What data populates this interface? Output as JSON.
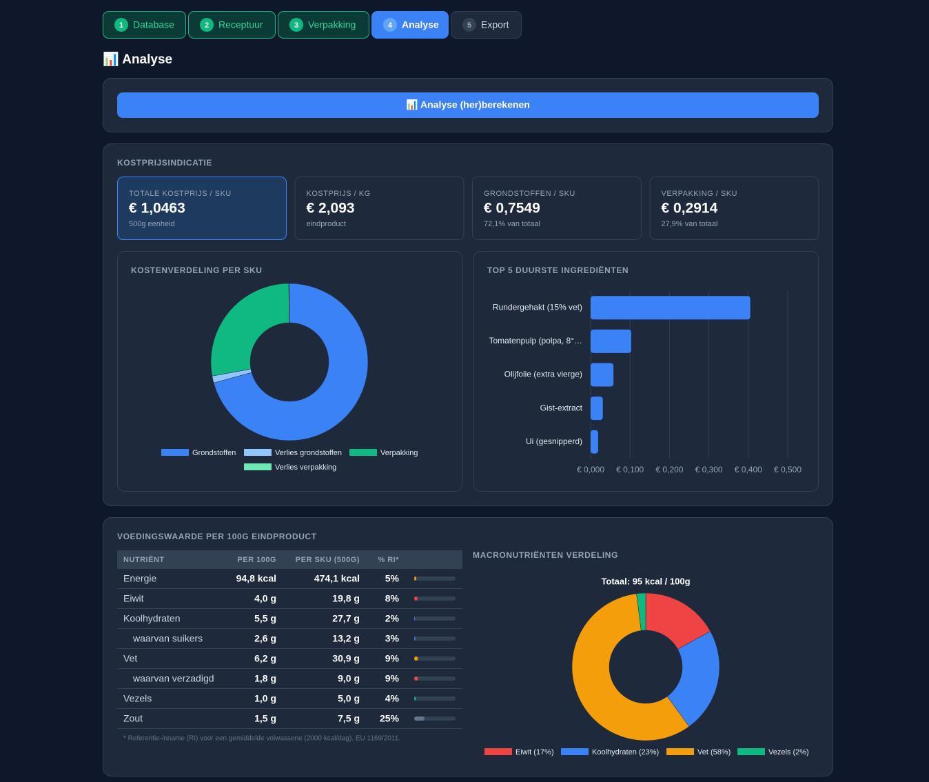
{
  "steps": [
    {
      "number": 1,
      "label": "Database",
      "status": "done"
    },
    {
      "number": 2,
      "label": "Receptuur",
      "status": "done"
    },
    {
      "number": 3,
      "label": "Verpakking",
      "status": "done"
    },
    {
      "number": 4,
      "label": "Analyse",
      "status": "active"
    },
    {
      "number": 5,
      "label": "Export",
      "status": "todo"
    }
  ],
  "title": "📊 Analyse",
  "button": "📊 Analyse (her)berekenen",
  "cost": {
    "heading": "KOSTPRIJSINDICATIE",
    "cards": [
      {
        "label": "TOTALE KOSTPRIJS / SKU",
        "value": "€ 1,0463",
        "sub": "500g eenheid",
        "highlight": true
      },
      {
        "label": "KOSTPRIJS / KG",
        "value": "€ 2,093",
        "sub": "eindproduct"
      },
      {
        "label": "GRONDSTOFFEN / SKU",
        "value": "€ 0,7549",
        "sub": "72,1% van totaal"
      },
      {
        "label": "VERPAKKING / SKU",
        "value": "€ 0,2914",
        "sub": "27,9% van totaal"
      }
    ]
  },
  "chart_data": [
    {
      "type": "donut",
      "title": "KOSTENVERDELING PER SKU",
      "categories": [
        "Grondstoffen",
        "Verlies grondstoffen",
        "Verpakking",
        "Verlies verpakking"
      ],
      "values": [
        0.74,
        0.015,
        0.29,
        0.0014
      ],
      "colors": [
        "#3b82f6",
        "#93c5fd",
        "#10b981",
        "#6ee7b7"
      ]
    },
    {
      "type": "bar",
      "orientation": "horizontal",
      "title": "TOP 5 DUURSTE INGREDIËNTEN",
      "categories": [
        "Rundergehakt (15% vet)",
        "Tomatenpulp (polpa, 8°…",
        "Olijfolie (extra vierge)",
        "Gist-extract",
        "Ui (gesnipperd)"
      ],
      "values": [
        0.405,
        0.103,
        0.058,
        0.031,
        0.019
      ],
      "color": "#3b82f6",
      "xlim": [
        0,
        0.5
      ],
      "xticks": [
        {
          "value": 0,
          "label": "€ 0,000"
        },
        {
          "value": 0.1,
          "label": "€ 0,100"
        },
        {
          "value": 0.2,
          "label": "€ 0,200"
        },
        {
          "value": 0.3,
          "label": "€ 0,300"
        },
        {
          "value": 0.4,
          "label": "€ 0,400"
        },
        {
          "value": 0.5,
          "label": "€ 0,500"
        }
      ],
      "grid": true
    },
    {
      "type": "donut",
      "title": "MACRONUTRIËNTEN VERDELING",
      "subtitle": "Totaal: 95 kcal / 100g",
      "categories": [
        "Eiwit (17%)",
        "Koolhydraten (23%)",
        "Vet (58%)",
        "Vezels (2%)"
      ],
      "values": [
        17,
        23,
        58,
        2
      ],
      "colors": [
        "#ef4444",
        "#3b82f6",
        "#f59e0b",
        "#10b981"
      ]
    }
  ],
  "nutrition": {
    "heading": "VOEDINGSWAARDE PER 100G EINDPRODUCT",
    "columns": [
      "NUTRIËNT",
      "PER 100G",
      "PER SKU (500G)",
      "% RI*"
    ],
    "rows": [
      {
        "name": "Energie",
        "per_100g": "94,8 kcal",
        "per_sku": "474,1 kcal",
        "ri": {
          "value": 5,
          "label": "5%"
        },
        "color": "#f59e0b"
      },
      {
        "name": "Eiwit",
        "per_100g": "4,0 g",
        "per_sku": "19,8 g",
        "ri": {
          "value": 8,
          "label": "8%"
        },
        "color": "#ef4444"
      },
      {
        "name": "Koolhydraten",
        "per_100g": "5,5 g",
        "per_sku": "27,7 g",
        "ri": {
          "value": 2,
          "label": "2%"
        },
        "color": "#3b82f6"
      },
      {
        "name": "waarvan suikers",
        "per_100g": "2,6 g",
        "per_sku": "13,2 g",
        "ri": {
          "value": 3,
          "label": "3%"
        },
        "color": "#3b82f6",
        "indent": true
      },
      {
        "name": "Vet",
        "per_100g": "6,2 g",
        "per_sku": "30,9 g",
        "ri": {
          "value": 9,
          "label": "9%"
        },
        "color": "#f59e0b"
      },
      {
        "name": "waarvan verzadigd",
        "per_100g": "1,8 g",
        "per_sku": "9,0 g",
        "ri": {
          "value": 9,
          "label": "9%"
        },
        "color": "#ef4444",
        "indent": true
      },
      {
        "name": "Vezels",
        "per_100g": "1,0 g",
        "per_sku": "5,0 g",
        "ri": {
          "value": 4,
          "label": "4%"
        },
        "color": "#10b981"
      },
      {
        "name": "Zout",
        "per_100g": "1,5 g",
        "per_sku": "7,5 g",
        "ri": {
          "value": 25,
          "label": "25%"
        },
        "color": "#64748b"
      }
    ],
    "footnote": "* Referentie-inname (RI) voor een gemiddelde volwassene (2000 kcal/dag). EU 1169/2011."
  }
}
